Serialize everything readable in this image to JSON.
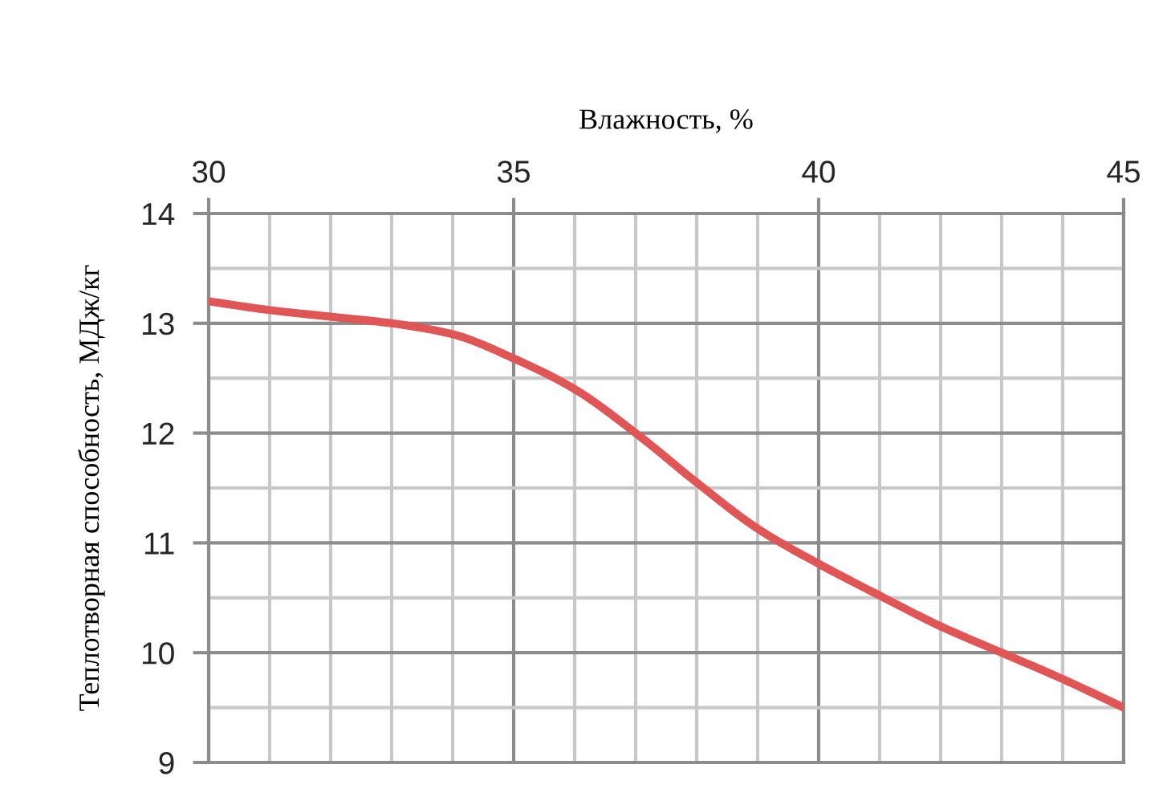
{
  "chart_data": {
    "type": "line",
    "xlabel": "Влажность, %",
    "ylabel": "Теплотворная способность, МДж/кг",
    "x": [
      30,
      31,
      32,
      33,
      34,
      35,
      36,
      37,
      38,
      39,
      40,
      41,
      42,
      43,
      44,
      45
    ],
    "series": [
      {
        "color": "#e05555",
        "values": [
          13.2,
          13.12,
          13.06,
          13.0,
          12.9,
          12.68,
          12.4,
          12.0,
          11.55,
          11.13,
          10.81,
          10.52,
          10.24,
          10.0,
          9.76,
          9.5
        ]
      }
    ],
    "xlim": [
      30,
      45
    ],
    "xticks": [
      30,
      {
        "value": 31,
        "label": null
      },
      {
        "value": 32,
        "label": null
      },
      {
        "value": 33,
        "label": null
      },
      {
        "value": 34,
        "label": null
      },
      35,
      {
        "value": 36,
        "label": null
      },
      {
        "value": 37,
        "label": null
      },
      {
        "value": 38,
        "label": null
      },
      {
        "value": 39,
        "label": null
      },
      40,
      {
        "value": 41,
        "label": null
      },
      {
        "value": 42,
        "label": null
      },
      {
        "value": 43,
        "label": null
      },
      {
        "value": 44,
        "label": null
      },
      45
    ],
    "ylim": [
      9,
      14
    ],
    "yticks": [
      9,
      {
        "value": 9.5,
        "label": null
      },
      10,
      {
        "value": 10.5,
        "label": null
      },
      11,
      {
        "value": 11.5,
        "label": null
      },
      12,
      {
        "value": 12.5,
        "label": null
      },
      13,
      {
        "value": 13.5,
        "label": null
      },
      14
    ],
    "grid": true,
    "line_style": "solid"
  }
}
